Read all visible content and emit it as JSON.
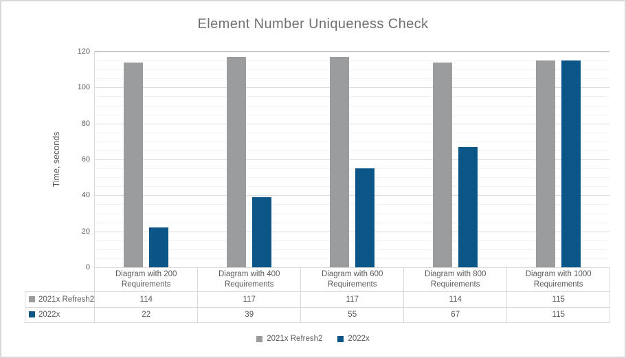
{
  "window": {
    "background": "#FFFFFF",
    "border_color": "#D9D9D9"
  },
  "chart_data": {
    "type": "bar",
    "title": "Element Number Uniqueness Check",
    "xlabel": "",
    "ylabel": "Time, seconds",
    "ylim": [
      0,
      120
    ],
    "y_ticks": [
      0,
      20,
      40,
      60,
      80,
      100,
      120
    ],
    "y_minor_step": 5,
    "grid": true,
    "legend_position": "bottom",
    "data_table_shown": true,
    "title_color": "#707070",
    "text_color": "#595959",
    "gridline_major_color": "#DCDCDC",
    "gridline_minor_color": "#F2F2F2",
    "categories": [
      "Diagram with 200 Requirements",
      "Diagram with 400 Requirements",
      "Diagram with 600 Requirements",
      "Diagram with 800 Requirements",
      "Diagram with 1000 Requirements"
    ],
    "series": [
      {
        "name": "2021x Refresh2",
        "color": "#9B9C9E",
        "values": [
          114,
          117,
          117,
          114,
          115
        ]
      },
      {
        "name": "2022x",
        "color": "#0B5687",
        "values": [
          22,
          39,
          55,
          67,
          115
        ]
      }
    ]
  }
}
